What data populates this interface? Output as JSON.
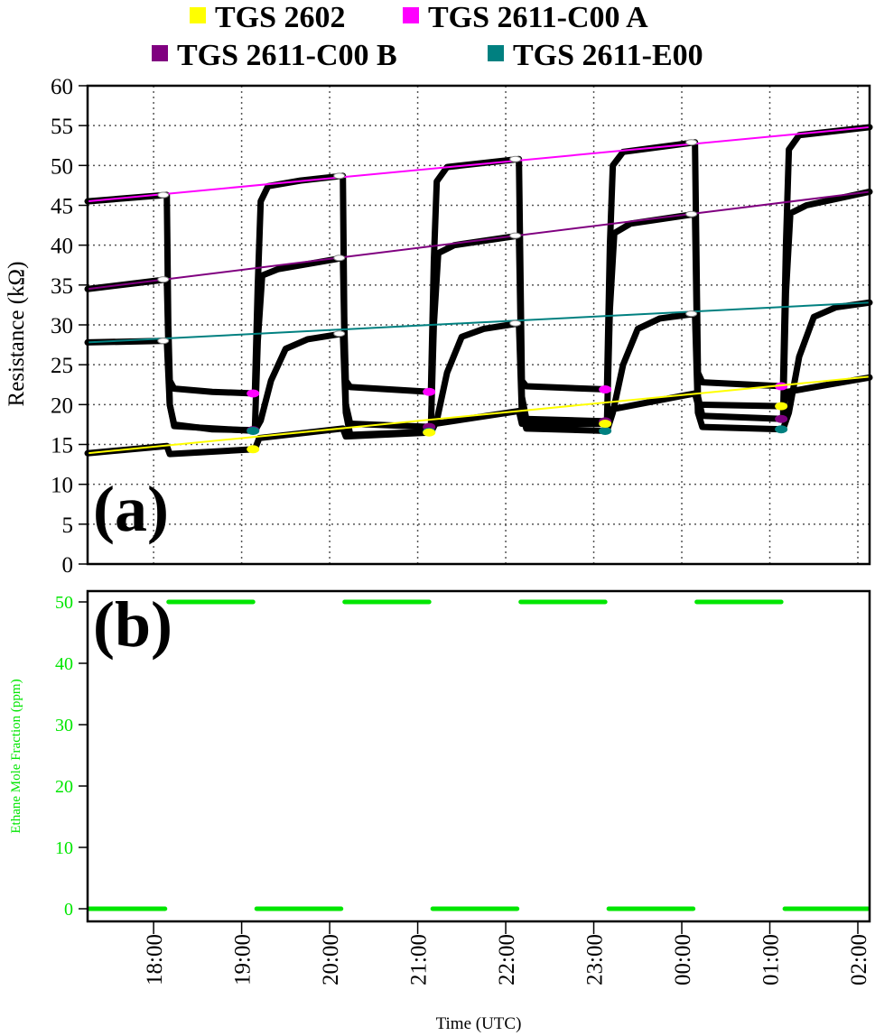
{
  "chart_data": [
    {
      "type": "line",
      "panel_label": "(a)",
      "ylabel": "Resistance (kΩ)",
      "ylim": [
        0,
        60
      ],
      "yticks": [
        0,
        5,
        10,
        15,
        20,
        25,
        30,
        35,
        40,
        45,
        50,
        55,
        60
      ],
      "xlim": [
        "17:15",
        "02:08"
      ],
      "grid": true,
      "legend": {
        "placement": "top",
        "entries": [
          {
            "name": "TGS 2602",
            "color": "#ffff00"
          },
          {
            "name": "TGS 2611-C00 A",
            "color": "#ff00ff"
          },
          {
            "name": "TGS 2611-C00 B",
            "color": "#800080"
          },
          {
            "name": "TGS 2611-E00",
            "color": "#008080"
          }
        ]
      },
      "exposure_end_times": [
        "19:09",
        "21:09",
        "23:09",
        "01:09"
      ],
      "exposure_start_times": [
        "18:09",
        "20:09",
        "22:09",
        "00:09"
      ],
      "series": [
        {
          "name": "TGS 2611-C00 A",
          "color": "#ff00ff",
          "baseline_fit": [
            45.5,
            54.8
          ],
          "points": [
            [
              "17:15",
              45.5
            ],
            [
              "18:09",
              46.3
            ],
            [
              "18:10",
              30
            ],
            [
              "18:11",
              23
            ],
            [
              "18:14",
              22
            ],
            [
              "18:40",
              21.6
            ],
            [
              "19:09",
              21.4
            ],
            [
              "19:11",
              35
            ],
            [
              "19:13",
              45.5
            ],
            [
              "19:18",
              47.4
            ],
            [
              "19:40",
              48.1
            ],
            [
              "20:09",
              48.7
            ],
            [
              "20:10",
              30
            ],
            [
              "20:11",
              23
            ],
            [
              "20:14",
              22.2
            ],
            [
              "21:09",
              21.6
            ],
            [
              "21:11",
              38
            ],
            [
              "21:13",
              48
            ],
            [
              "21:20",
              49.8
            ],
            [
              "22:09",
              50.8
            ],
            [
              "22:11",
              23
            ],
            [
              "22:14",
              22.3
            ],
            [
              "23:09",
              21.9
            ],
            [
              "23:11",
              40
            ],
            [
              "23:13",
              50
            ],
            [
              "23:20",
              51.7
            ],
            [
              "00:09",
              52.9
            ],
            [
              "00:11",
              24
            ],
            [
              "00:14",
              22.8
            ],
            [
              "01:09",
              22.3
            ],
            [
              "01:11",
              40
            ],
            [
              "01:13",
              52
            ],
            [
              "01:20",
              53.8
            ],
            [
              "02:08",
              54.8
            ]
          ]
        },
        {
          "name": "TGS 2611-C00 B",
          "color": "#800080",
          "baseline_fit": [
            34.5,
            46.7
          ],
          "points": [
            [
              "17:15",
              34.5
            ],
            [
              "18:09",
              35.7
            ],
            [
              "18:11",
              20
            ],
            [
              "18:14",
              17.5
            ],
            [
              "18:40",
              16.9
            ],
            [
              "19:09",
              16.8
            ],
            [
              "19:11",
              28
            ],
            [
              "19:14",
              36.2
            ],
            [
              "19:25",
              37
            ],
            [
              "20:09",
              38.4
            ],
            [
              "20:11",
              20
            ],
            [
              "20:14",
              17.6
            ],
            [
              "21:09",
              17.2
            ],
            [
              "21:11",
              30
            ],
            [
              "21:14",
              39
            ],
            [
              "21:25",
              40
            ],
            [
              "22:09",
              41.2
            ],
            [
              "22:11",
              21
            ],
            [
              "22:14",
              18.2
            ],
            [
              "23:09",
              17.9
            ],
            [
              "23:11",
              32
            ],
            [
              "23:14",
              41.5
            ],
            [
              "23:25",
              42.7
            ],
            [
              "00:09",
              43.9
            ],
            [
              "00:11",
              21
            ],
            [
              "00:14",
              18.6
            ],
            [
              "01:09",
              18.2
            ],
            [
              "01:11",
              34
            ],
            [
              "01:14",
              44
            ],
            [
              "01:25",
              45
            ],
            [
              "02:08",
              46.7
            ]
          ]
        },
        {
          "name": "TGS 2611-E00",
          "color": "#008080",
          "baseline_fit": [
            27.8,
            32.8
          ],
          "points": [
            [
              "17:15",
              27.8
            ],
            [
              "18:09",
              28.0
            ],
            [
              "18:11",
              20
            ],
            [
              "18:14",
              17.3
            ],
            [
              "19:09",
              16.7
            ],
            [
              "19:13",
              18
            ],
            [
              "19:20",
              23
            ],
            [
              "19:30",
              27
            ],
            [
              "19:45",
              28.2
            ],
            [
              "20:09",
              28.9
            ],
            [
              "20:11",
              19
            ],
            [
              "20:14",
              16.2
            ],
            [
              "21:09",
              16.6
            ],
            [
              "21:13",
              18
            ],
            [
              "21:20",
              24
            ],
            [
              "21:30",
              28.5
            ],
            [
              "21:45",
              29.5
            ],
            [
              "22:09",
              30.2
            ],
            [
              "22:11",
              19
            ],
            [
              "22:14",
              17
            ],
            [
              "23:09",
              16.7
            ],
            [
              "23:13",
              19
            ],
            [
              "23:20",
              25
            ],
            [
              "23:30",
              29.5
            ],
            [
              "23:45",
              30.8
            ],
            [
              "00:09",
              31.4
            ],
            [
              "00:11",
              19
            ],
            [
              "00:14",
              17.2
            ],
            [
              "01:09",
              16.9
            ],
            [
              "01:13",
              19
            ],
            [
              "01:20",
              26
            ],
            [
              "01:30",
              31
            ],
            [
              "01:45",
              32.2
            ],
            [
              "02:08",
              32.8
            ]
          ]
        },
        {
          "name": "TGS 2602",
          "color": "#ffff00",
          "baseline_fit": [
            13.9,
            23.5
          ],
          "points": [
            [
              "17:15",
              13.9
            ],
            [
              "18:09",
              14.8
            ],
            [
              "18:11",
              13.8
            ],
            [
              "19:09",
              14.4
            ],
            [
              "19:12",
              15.8
            ],
            [
              "20:09",
              17.0
            ],
            [
              "20:11",
              16.0
            ],
            [
              "21:09",
              16.5
            ],
            [
              "21:12",
              17.6
            ],
            [
              "22:09",
              19.2
            ],
            [
              "22:11",
              17.6
            ],
            [
              "23:09",
              17.6
            ],
            [
              "23:12",
              19.4
            ],
            [
              "00:09",
              21.4
            ],
            [
              "00:11",
              20
            ],
            [
              "01:09",
              19.8
            ],
            [
              "01:12",
              21.6
            ],
            [
              "02:08",
              23.4
            ]
          ]
        }
      ]
    },
    {
      "type": "line",
      "panel_label": "(b)",
      "ylabel": "Ethane Mole Fraction (ppm)",
      "xlabel": "Time (UTC)",
      "ylim": [
        0,
        50
      ],
      "yticks": [
        0,
        10,
        20,
        30,
        40,
        50
      ],
      "xticks": [
        "18:00",
        "19:00",
        "20:00",
        "21:00",
        "22:00",
        "23:00",
        "00:00",
        "01:00",
        "02:00"
      ],
      "color": "#00e600",
      "segments": [
        [
          "17:15",
          "18:09",
          0
        ],
        [
          "18:09",
          "19:09",
          50
        ],
        [
          "19:09",
          "20:09",
          0
        ],
        [
          "20:09",
          "21:09",
          50
        ],
        [
          "21:09",
          "22:09",
          0
        ],
        [
          "22:09",
          "23:09",
          50
        ],
        [
          "23:09",
          "00:09",
          0
        ],
        [
          "00:09",
          "01:09",
          50
        ],
        [
          "01:09",
          "02:08",
          0
        ]
      ]
    }
  ]
}
